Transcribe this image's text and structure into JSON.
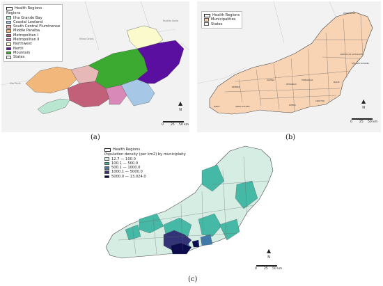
{
  "panel_a": {
    "caption": "(a)",
    "legend": {
      "health_regions": "Health Regions",
      "regions_heading": "Regions",
      "items": [
        {
          "label": "Ilha Grande Bay",
          "color": "#b8e6d0"
        },
        {
          "label": "Coastal Lowland",
          "color": "#a6c8e6"
        },
        {
          "label": "South Central Fluminense",
          "color": "#e6b8b8"
        },
        {
          "label": "Middle Paraiba",
          "color": "#f2b77a"
        },
        {
          "label": "Metropolitan I",
          "color": "#c2607a"
        },
        {
          "label": "Metropolitan II",
          "color": "#d989b8"
        },
        {
          "label": "Northwest",
          "color": "#fafacc"
        },
        {
          "label": "North",
          "color": "#5a0fa0"
        },
        {
          "label": "Mountain",
          "color": "#3caa30"
        },
        {
          "label": "States",
          "color": "#f7f7f7"
        }
      ]
    },
    "place_labels": [
      "Minas Gerais",
      "São Paulo",
      "Espírito Santo"
    ],
    "scale": {
      "ticks": [
        "0",
        "25",
        "50 km"
      ]
    }
  },
  "panel_b": {
    "caption": "(b)",
    "legend": {
      "health_regions": "Health Regions",
      "items": [
        {
          "label": "Municipalities",
          "color": "#f9d4b4"
        },
        {
          "label": "States",
          "color": "#f7f7f7"
        }
      ]
    },
    "municipality_labels": [
      "PORCIÚNCULA",
      "CAMPOS DOS GOYTACAZES",
      "SÃO JOÃO DA BARRA",
      "MACAÉ",
      "TERESÓPOLIS",
      "PETRÓPOLIS",
      "VALENÇA",
      "RESENDE",
      "ANGRA DOS REIS",
      "PARATY",
      "NITERÓI",
      "CABO FRIO"
    ],
    "scale": {
      "ticks": [
        "0",
        "25",
        "50 km"
      ]
    }
  },
  "panel_c": {
    "caption": "(c)",
    "legend": {
      "health_regions": "Health Regions",
      "heading": "Population density (per km2) by municiplaity",
      "items": [
        {
          "label": "12.7  —  100.0",
          "color": "#d6ede4"
        },
        {
          "label": "100.1  —  500.0",
          "color": "#45b8a6"
        },
        {
          "label": "500.1  —  1000.0",
          "color": "#3f7aa8"
        },
        {
          "label": "1000.1  —  5000.0",
          "color": "#333377"
        },
        {
          "label": "5000.0  —  13,024.0",
          "color": "#0b0b4d"
        }
      ]
    },
    "scale": {
      "ticks": [
        "0",
        "25",
        "50 km"
      ]
    }
  }
}
